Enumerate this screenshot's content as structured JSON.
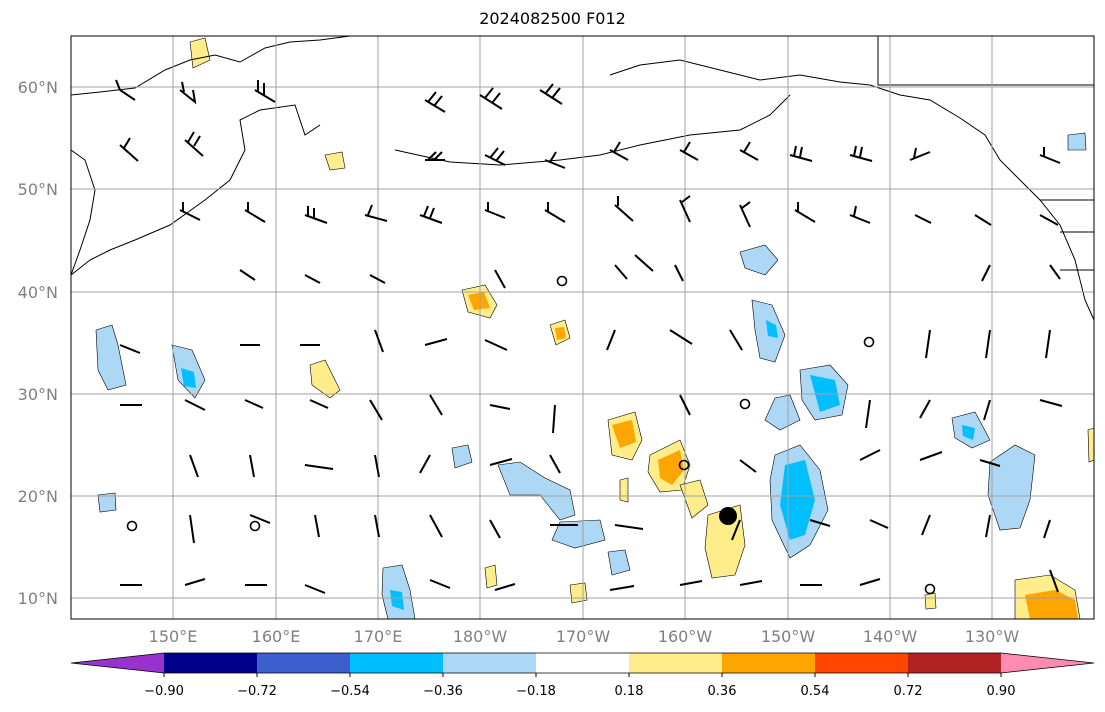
{
  "title": "2024082500 F012",
  "map": {
    "grid": true,
    "lat_labels": [
      "60°N",
      "50°N",
      "40°N",
      "30°N",
      "20°N",
      "10°N"
    ],
    "lon_labels": [
      "150°E",
      "160°E",
      "170°E",
      "180°W",
      "170°W",
      "160°W",
      "150°W",
      "140°W",
      "130°W"
    ],
    "colors": {
      "light_blue": "#add8f5",
      "blue": "#00bfff",
      "light_yellow": "#ffec8b",
      "orange": "#ffa500",
      "gridline": "#a0a0a0"
    }
  },
  "colorbar": {
    "colors": [
      "#9932cc",
      "#00008b",
      "#3b5fcc",
      "#00bfff",
      "#add8f5",
      "#ffffff",
      "#ffec8b",
      "#ffa500",
      "#ff4500",
      "#b22222",
      "#ff8bb3"
    ],
    "ticks": [
      "−0.90",
      "−0.72",
      "−0.54",
      "−0.36",
      "−0.18",
      "0.18",
      "0.36",
      "0.54",
      "0.72",
      "0.90"
    ]
  }
}
